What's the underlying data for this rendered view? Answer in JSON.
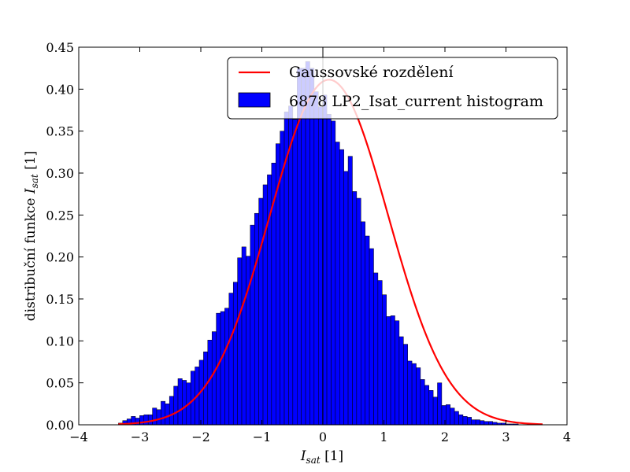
{
  "chart_data": {
    "type": "bar",
    "title": "",
    "xlabel_main": "I",
    "xlabel_sub": "sat",
    "xlabel_unit": " [1]",
    "ylabel_prefix": "distribuční funkce ",
    "ylabel_main": "I",
    "ylabel_sub": "sat",
    "ylabel_unit": " [1]",
    "xlim": [
      -4,
      4
    ],
    "ylim": [
      0,
      0.45
    ],
    "xticks": [
      -4,
      -3,
      -2,
      -1,
      0,
      1,
      2,
      3,
      4
    ],
    "xtick_labels": [
      "−4",
      "−3",
      "−2",
      "−1",
      "0",
      "1",
      "2",
      "3",
      "4"
    ],
    "yticks": [
      0,
      0.05,
      0.1,
      0.15,
      0.2,
      0.25,
      0.3,
      0.35,
      0.4,
      0.45
    ],
    "ytick_labels": [
      "0.00",
      "0.05",
      "0.10",
      "0.15",
      "0.20",
      "0.25",
      "0.30",
      "0.35",
      "0.40",
      "0.45"
    ],
    "grid": false,
    "legend_position": "top-right",
    "legend": {
      "line_label": "Gaussovské rozdělení",
      "hist_label": "6878 LP2_Isat_current histogram"
    },
    "colors": {
      "histogram": "#0000ff",
      "curve": "#ff0000"
    },
    "histogram": {
      "bin_width": 0.0697,
      "bin_edges_start": -3.35,
      "heights": [
        0.002,
        0.005,
        0.007,
        0.01,
        0.008,
        0.011,
        0.012,
        0.012,
        0.02,
        0.018,
        0.028,
        0.025,
        0.034,
        0.046,
        0.055,
        0.053,
        0.05,
        0.064,
        0.069,
        0.077,
        0.087,
        0.101,
        0.111,
        0.133,
        0.135,
        0.139,
        0.157,
        0.17,
        0.199,
        0.212,
        0.201,
        0.238,
        0.252,
        0.27,
        0.286,
        0.298,
        0.312,
        0.335,
        0.35,
        0.373,
        0.38,
        0.364,
        0.425,
        0.425,
        0.433,
        0.425,
        0.397,
        0.379,
        0.393,
        0.37,
        0.362,
        0.337,
        0.328,
        0.302,
        0.32,
        0.278,
        0.27,
        0.242,
        0.225,
        0.21,
        0.181,
        0.172,
        0.155,
        0.129,
        0.13,
        0.124,
        0.105,
        0.096,
        0.076,
        0.073,
        0.068,
        0.054,
        0.047,
        0.041,
        0.033,
        0.05,
        0.023,
        0.024,
        0.02,
        0.016,
        0.012,
        0.01,
        0.009,
        0.006,
        0.006,
        0.005,
        0.004,
        0.004,
        0.003,
        0.002,
        0.002,
        0.001,
        0.001,
        0.001
      ]
    },
    "gaussian": {
      "mean": 0.1,
      "sigma": 0.97,
      "x_range": [
        -3.35,
        3.6
      ]
    }
  }
}
